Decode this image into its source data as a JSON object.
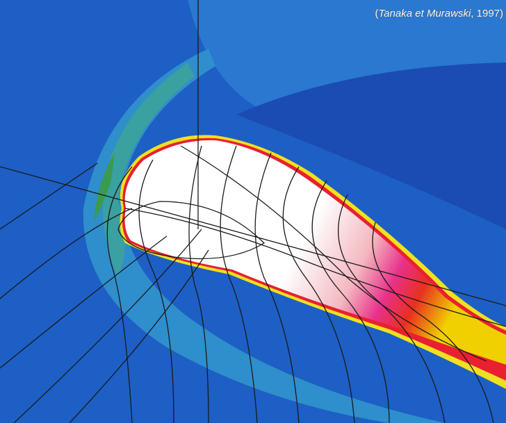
{
  "citation": {
    "open": "(",
    "authors": "Tanaka et Murawski",
    "rest": ", 1997)"
  }
}
